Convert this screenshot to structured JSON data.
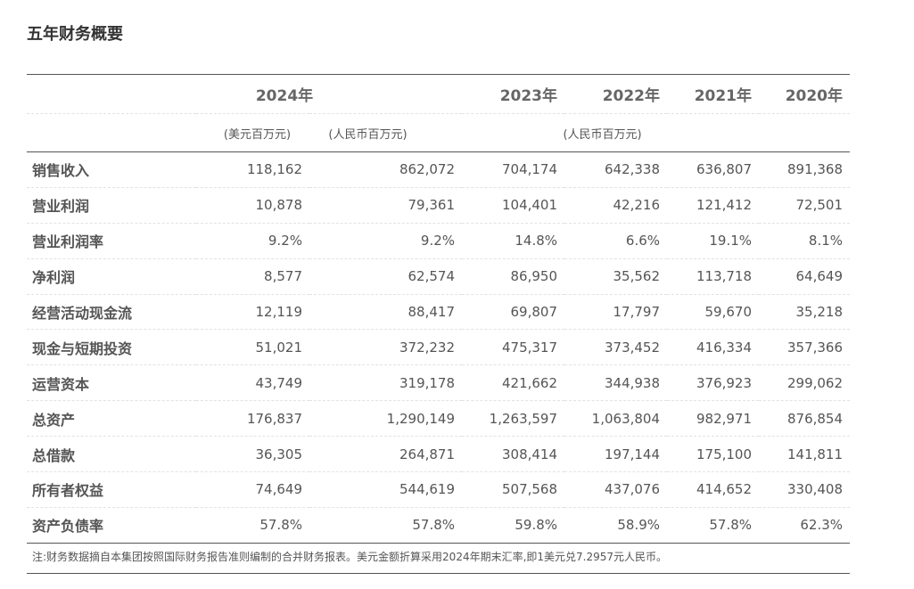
{
  "title": "五年财务概要",
  "years": [
    "2024年",
    "2023年",
    "2022年",
    "2021年",
    "2020年"
  ],
  "units": {
    "usd": "(美元百万元)",
    "rmb_2024": "(人民币百万元)",
    "rmb_hist": "(人民币百万元)"
  },
  "rows": [
    {
      "label": "销售收入",
      "usd": "118,162",
      "y2024": "862,072",
      "y2023": "704,174",
      "y2022": "642,338",
      "y2021": "636,807",
      "y2020": "891,368"
    },
    {
      "label": "营业利润",
      "usd": "10,878",
      "y2024": "79,361",
      "y2023": "104,401",
      "y2022": "42,216",
      "y2021": "121,412",
      "y2020": "72,501"
    },
    {
      "label": "营业利润率",
      "usd": "9.2%",
      "y2024": "9.2%",
      "y2023": "14.8%",
      "y2022": "6.6%",
      "y2021": "19.1%",
      "y2020": "8.1%"
    },
    {
      "label": "净利润",
      "usd": "8,577",
      "y2024": "62,574",
      "y2023": "86,950",
      "y2022": "35,562",
      "y2021": "113,718",
      "y2020": "64,649"
    },
    {
      "label": "经营活动现金流",
      "usd": "12,119",
      "y2024": "88,417",
      "y2023": "69,807",
      "y2022": "17,797",
      "y2021": "59,670",
      "y2020": "35,218"
    },
    {
      "label": "现金与短期投资",
      "usd": "51,021",
      "y2024": "372,232",
      "y2023": "475,317",
      "y2022": "373,452",
      "y2021": "416,334",
      "y2020": "357,366"
    },
    {
      "label": "运营资本",
      "usd": "43,749",
      "y2024": "319,178",
      "y2023": "421,662",
      "y2022": "344,938",
      "y2021": "376,923",
      "y2020": "299,062"
    },
    {
      "label": "总资产",
      "usd": "176,837",
      "y2024": "1,290,149",
      "y2023": "1,263,597",
      "y2022": "1,063,804",
      "y2021": "982,971",
      "y2020": "876,854"
    },
    {
      "label": "总借款",
      "usd": "36,305",
      "y2024": "264,871",
      "y2023": "308,414",
      "y2022": "197,144",
      "y2021": "175,100",
      "y2020": "141,811"
    },
    {
      "label": "所有者权益",
      "usd": "74,649",
      "y2024": "544,619",
      "y2023": "507,568",
      "y2022": "437,076",
      "y2021": "414,652",
      "y2020": "330,408"
    },
    {
      "label": "资产负债率",
      "usd": "57.8%",
      "y2024": "57.8%",
      "y2023": "59.8%",
      "y2022": "58.9%",
      "y2021": "57.8%",
      "y2020": "62.3%"
    }
  ],
  "note": "注:财务数据摘自本集团按照国际财务报告准则编制的合并财务报表。美元金额折算采用2024年期末汇率,即1美元兑7.2957元人民币。"
}
